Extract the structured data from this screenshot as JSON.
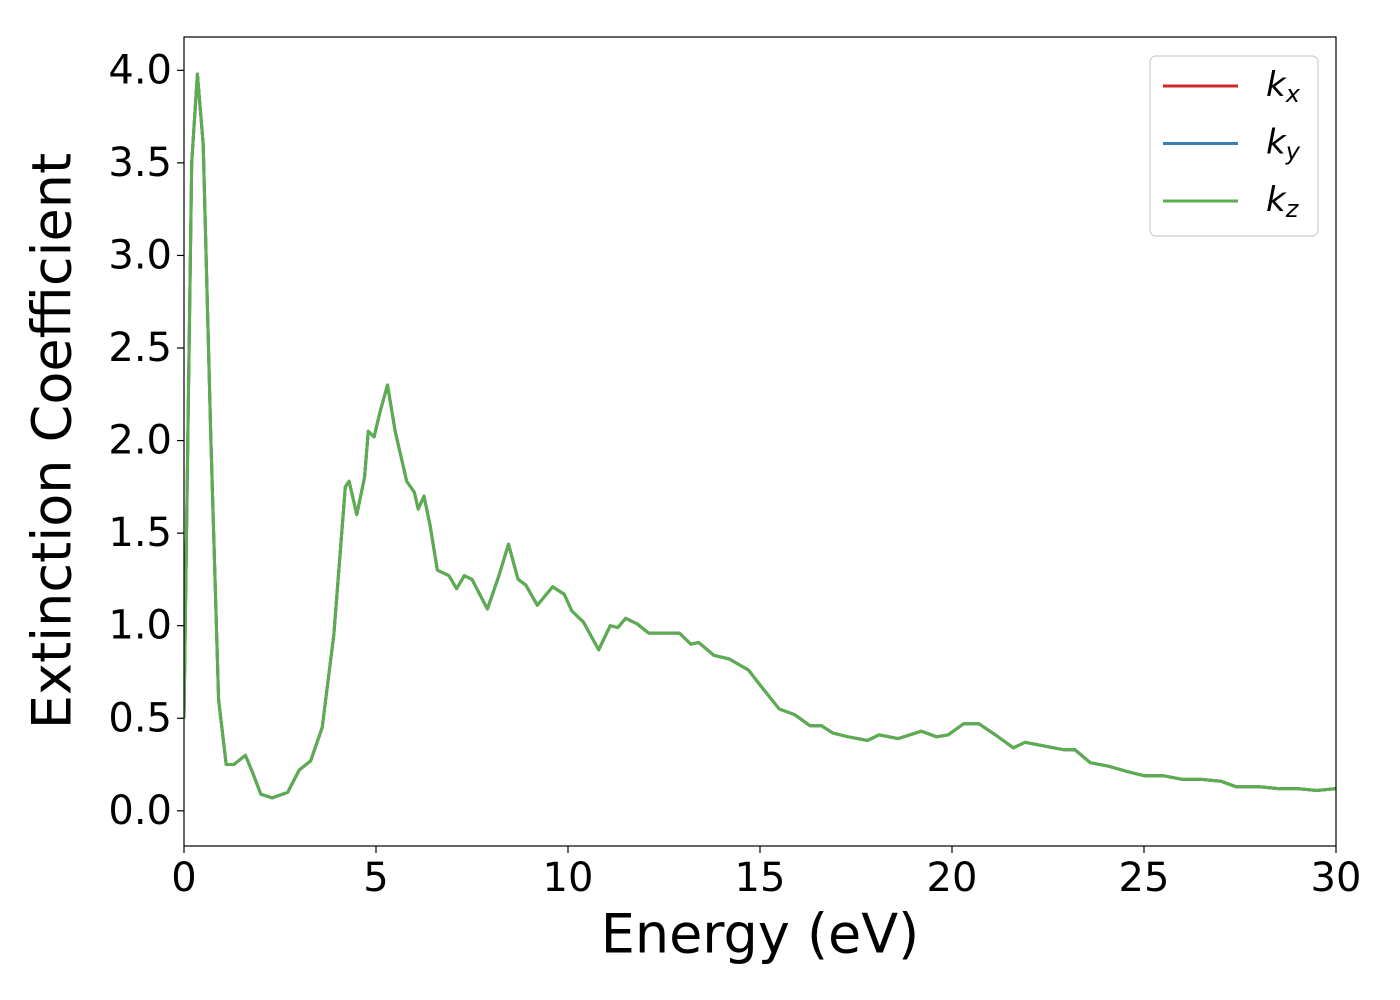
{
  "chart_data": {
    "type": "line",
    "xlabel": "Energy (eV)",
    "ylabel": "Extinction Coefficient",
    "x": [
      0,
      0.1,
      0.2,
      0.35,
      0.5,
      0.7,
      0.9,
      1.1,
      1.3,
      1.6,
      1.8,
      2.0,
      2.3,
      2.7,
      3.0,
      3.3,
      3.6,
      3.9,
      4.2,
      4.3,
      4.5,
      4.7,
      4.8,
      4.95,
      5.1,
      5.3,
      5.5,
      5.8,
      6.0,
      6.1,
      6.25,
      6.4,
      6.6,
      6.9,
      7.1,
      7.3,
      7.5,
      7.9,
      8.2,
      8.45,
      8.7,
      8.9,
      9.2,
      9.6,
      9.9,
      10.1,
      10.4,
      10.8,
      11.1,
      11.3,
      11.5,
      11.8,
      12.1,
      12.5,
      12.9,
      13.2,
      13.4,
      13.8,
      14.2,
      14.7,
      15.0,
      15.5,
      15.9,
      16.3,
      16.6,
      16.9,
      17.3,
      17.8,
      18.1,
      18.6,
      19.2,
      19.6,
      19.9,
      20.3,
      20.7,
      21.2,
      21.6,
      21.9,
      22.4,
      22.9,
      23.2,
      23.6,
      24.1,
      24.6,
      25.0,
      25.5,
      26.0,
      26.5,
      27.0,
      27.4,
      28.0,
      28.5,
      29.0,
      29.5,
      30
    ],
    "series": [
      {
        "name": "kx",
        "color": "#d62728",
        "values": [
          0.5,
          2.0,
          3.5,
          3.98,
          3.6,
          2.0,
          0.6,
          0.25,
          0.25,
          0.3,
          0.2,
          0.09,
          0.07,
          0.1,
          0.22,
          0.27,
          0.45,
          0.95,
          1.75,
          1.78,
          1.6,
          1.8,
          2.05,
          2.02,
          2.15,
          2.3,
          2.05,
          1.78,
          1.72,
          1.63,
          1.7,
          1.55,
          1.3,
          1.27,
          1.2,
          1.27,
          1.25,
          1.09,
          1.27,
          1.44,
          1.25,
          1.22,
          1.11,
          1.21,
          1.17,
          1.08,
          1.02,
          0.87,
          1.0,
          0.99,
          1.04,
          1.01,
          0.96,
          0.96,
          0.96,
          0.9,
          0.91,
          0.84,
          0.82,
          0.76,
          0.68,
          0.55,
          0.52,
          0.46,
          0.46,
          0.42,
          0.4,
          0.38,
          0.41,
          0.39,
          0.43,
          0.4,
          0.41,
          0.47,
          0.47,
          0.4,
          0.34,
          0.37,
          0.35,
          0.33,
          0.33,
          0.26,
          0.24,
          0.21,
          0.19,
          0.19,
          0.17,
          0.17,
          0.16,
          0.13,
          0.13,
          0.12,
          0.12,
          0.11,
          0.12
        ]
      },
      {
        "name": "ky",
        "color": "#377eb8",
        "values": [
          0.5,
          2.0,
          3.5,
          3.98,
          3.6,
          2.0,
          0.6,
          0.25,
          0.25,
          0.3,
          0.2,
          0.09,
          0.07,
          0.1,
          0.22,
          0.27,
          0.45,
          0.95,
          1.75,
          1.78,
          1.6,
          1.8,
          2.05,
          2.02,
          2.15,
          2.3,
          2.05,
          1.78,
          1.72,
          1.63,
          1.7,
          1.55,
          1.3,
          1.27,
          1.2,
          1.27,
          1.25,
          1.09,
          1.27,
          1.44,
          1.25,
          1.22,
          1.11,
          1.21,
          1.17,
          1.08,
          1.02,
          0.87,
          1.0,
          0.99,
          1.04,
          1.01,
          0.96,
          0.96,
          0.96,
          0.9,
          0.91,
          0.84,
          0.82,
          0.76,
          0.68,
          0.55,
          0.52,
          0.46,
          0.46,
          0.42,
          0.4,
          0.38,
          0.41,
          0.39,
          0.43,
          0.4,
          0.41,
          0.47,
          0.47,
          0.4,
          0.34,
          0.37,
          0.35,
          0.33,
          0.33,
          0.26,
          0.24,
          0.21,
          0.19,
          0.19,
          0.17,
          0.17,
          0.16,
          0.13,
          0.13,
          0.12,
          0.12,
          0.11,
          0.12
        ]
      },
      {
        "name": "kz",
        "color": "#5aae4e",
        "values": [
          0.5,
          2.0,
          3.5,
          3.98,
          3.6,
          2.0,
          0.6,
          0.25,
          0.25,
          0.3,
          0.2,
          0.09,
          0.07,
          0.1,
          0.22,
          0.27,
          0.45,
          0.95,
          1.75,
          1.78,
          1.6,
          1.8,
          2.05,
          2.02,
          2.15,
          2.3,
          2.05,
          1.78,
          1.72,
          1.63,
          1.7,
          1.55,
          1.3,
          1.27,
          1.2,
          1.27,
          1.25,
          1.09,
          1.27,
          1.44,
          1.25,
          1.22,
          1.11,
          1.21,
          1.17,
          1.08,
          1.02,
          0.87,
          1.0,
          0.99,
          1.04,
          1.01,
          0.96,
          0.96,
          0.96,
          0.9,
          0.91,
          0.84,
          0.82,
          0.76,
          0.68,
          0.55,
          0.52,
          0.46,
          0.46,
          0.42,
          0.4,
          0.38,
          0.41,
          0.39,
          0.43,
          0.4,
          0.41,
          0.47,
          0.47,
          0.4,
          0.34,
          0.37,
          0.35,
          0.33,
          0.33,
          0.26,
          0.24,
          0.21,
          0.19,
          0.19,
          0.17,
          0.17,
          0.16,
          0.13,
          0.13,
          0.12,
          0.12,
          0.11,
          0.12
        ]
      }
    ],
    "xlim": [
      0,
      30
    ],
    "xticks": [
      0,
      5,
      10,
      15,
      20,
      25,
      30
    ],
    "ylim": [
      -0.19,
      4.18
    ],
    "yticks": [
      {
        "value": 0,
        "label": "0.0"
      },
      0.5,
      {
        "value": 1,
        "label": "1.0"
      },
      1.5,
      {
        "value": 2,
        "label": "2.0"
      },
      2.5,
      {
        "value": 3,
        "label": "3.0"
      },
      3.5,
      {
        "value": 4,
        "label": "4.0"
      }
    ],
    "legend": "upper right",
    "grid": false
  }
}
